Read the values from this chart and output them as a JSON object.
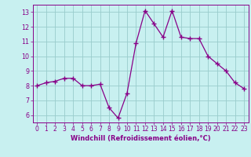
{
  "x_vals": [
    0,
    1,
    2,
    3,
    4,
    5,
    6,
    7,
    8,
    9,
    10,
    11,
    12,
    13,
    14,
    15,
    16,
    17,
    18,
    19,
    20,
    21,
    22,
    23
  ],
  "y_vals": [
    8.0,
    8.2,
    8.3,
    8.5,
    8.5,
    8.0,
    8.0,
    8.1,
    6.5,
    5.8,
    7.5,
    10.9,
    13.1,
    12.2,
    11.3,
    13.1,
    11.3,
    11.2,
    11.2,
    10.0,
    9.5,
    9.0,
    8.2,
    7.8
  ],
  "line_color": "#880088",
  "bg_color": "#c8f0f0",
  "grid_color": "#99cccc",
  "xlabel": "Windchill (Refroidissement éolien,°C)",
  "label_color": "#880088",
  "ylim": [
    5.5,
    13.5
  ],
  "xlim": [
    -0.5,
    23.5
  ],
  "yticks": [
    6,
    7,
    8,
    9,
    10,
    11,
    12,
    13
  ],
  "xticks": [
    0,
    1,
    2,
    3,
    4,
    5,
    6,
    7,
    8,
    9,
    10,
    11,
    12,
    13,
    14,
    15,
    16,
    17,
    18,
    19,
    20,
    21,
    22,
    23
  ],
  "tick_fontsize": 5.5,
  "xlabel_fontsize": 6.0
}
